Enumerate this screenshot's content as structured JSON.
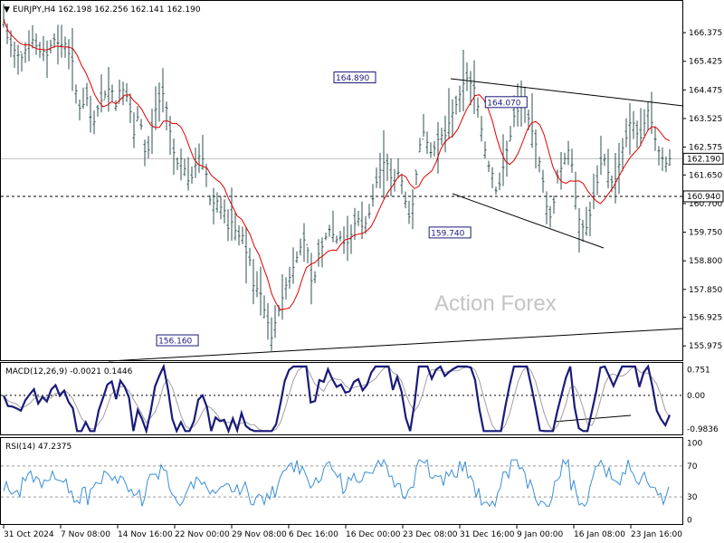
{
  "chart_data": [
    {
      "type": "candlestick",
      "panel": "price",
      "header": "EURJPY,H4  162.198 162.256 162.141 162.190",
      "watermark": "Action Forex",
      "ylim": [
        155.5,
        167.4
      ],
      "ticks": [
        "166.375",
        "165.425",
        "164.475",
        "163.525",
        "162.575",
        "161.650",
        "160.700",
        "159.750",
        "158.800",
        "157.850",
        "156.925",
        "155.975"
      ],
      "current_price": "162.190",
      "level_label": "160.940",
      "level_value": 160.94,
      "annotations": [
        {
          "text": "164.890",
          "x": 86,
          "y": 164.89
        },
        {
          "text": "164.070",
          "x": 121,
          "y": 164.07
        },
        {
          "text": "159.740",
          "x": 108,
          "y": 159.74
        },
        {
          "text": "156.160",
          "x": 45,
          "y": 156.16
        }
      ],
      "x_labels": [
        "31 Oct 2024",
        "7 Nov 08:00",
        "14 Nov 16:00",
        "22 Nov 00:00",
        "29 Nov 08:00",
        "6 Dec 16:00",
        "16 Dec 00:00",
        "23 Dec 08:00",
        "31 Dec 16:00",
        "9 Jan 00:00",
        "16 Jan 08:00",
        "23 Jan 16:00"
      ],
      "close": [
        166.8,
        166.1,
        165.9,
        165.7,
        165.5,
        165.8,
        166.0,
        166.2,
        165.7,
        165.8,
        165.6,
        166.0,
        166.2,
        165.9,
        166.1,
        165.7,
        165.4,
        164.1,
        163.7,
        164.4,
        163.6,
        163.4,
        164.0,
        164.2,
        164.5,
        164.5,
        163.9,
        164.6,
        164.4,
        164.1,
        162.9,
        163.6,
        163.2,
        162.0,
        163.0,
        163.8,
        164.1,
        164.4,
        163.6,
        162.6,
        162.0,
        162.2,
        161.8,
        161.3,
        161.8,
        162.3,
        162.2,
        161.6,
        160.5,
        160.9,
        160.6,
        160.5,
        159.8,
        160.2,
        159.5,
        159.8,
        159.1,
        158.8,
        157.7,
        158.0,
        157.3,
        156.8,
        156.2,
        156.9,
        157.3,
        157.9,
        158.2,
        158.6,
        159.0,
        159.4,
        159.6,
        158.1,
        158.3,
        159.2,
        159.3,
        159.9,
        159.7,
        159.5,
        159.6,
        159.3,
        159.5,
        160.0,
        160.2,
        159.9,
        160.1,
        160.6,
        161.3,
        161.8,
        162.1,
        162.0,
        161.2,
        161.8,
        161.5,
        160.7,
        160.1,
        161.1,
        162.5,
        163.1,
        162.7,
        162.3,
        162.7,
        163.0,
        162.9,
        163.4,
        163.8,
        164.1,
        164.6,
        164.9,
        164.7,
        164.5,
        163.6,
        162.7,
        162.0,
        161.7,
        161.0,
        161.5,
        162.3,
        162.8,
        163.6,
        163.8,
        164.2,
        163.7,
        163.2,
        162.7,
        162.0,
        161.2,
        160.1,
        160.5,
        161.6,
        161.9,
        162.3,
        162.6,
        161.1,
        160.2,
        159.9,
        159.9,
        160.6,
        161.2,
        162.0,
        162.2,
        161.6,
        161.3,
        161.8,
        162.5,
        162.9,
        163.5,
        163.3,
        162.7,
        163.3,
        163.8,
        163.3,
        162.6,
        162.3,
        162.0,
        162.19
      ],
      "ma_label": "red moving average"
    },
    {
      "type": "line",
      "panel": "macd",
      "header": "MACD(12,26,9) -0.0021 0.1446",
      "ylim": [
        -1.15,
        0.93
      ],
      "ticks": [
        "0.751",
        "0.00",
        "-0.9836"
      ],
      "main_name": "MACD",
      "signal_name": "signal"
    },
    {
      "type": "line",
      "panel": "rsi",
      "header": "RSI(14) 47.2375",
      "ylim": [
        -5,
        105
      ],
      "ticks": [
        "100",
        "70",
        "30",
        "0"
      ],
      "levels": [
        70,
        30
      ]
    }
  ]
}
